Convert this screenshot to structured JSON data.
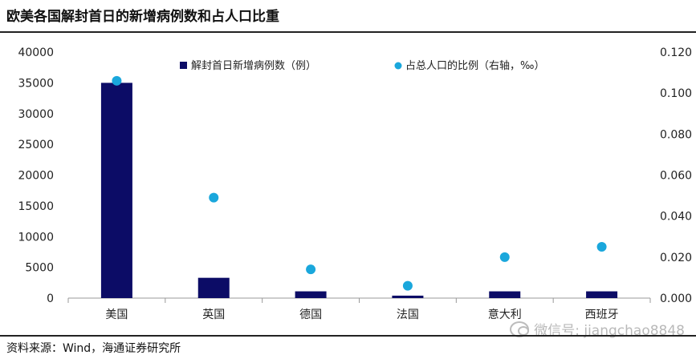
{
  "title": "欧美各国解封首日的新增病例数和占人口比重",
  "source": "资料来源：Wind，海通证券研究所",
  "watermark": "微信号: jiangchao8848",
  "colors": {
    "bar": "#0c0c66",
    "dot": "#1aa7dc",
    "axis": "#999999"
  },
  "chart_data": {
    "type": "bar",
    "categories": [
      "美国",
      "英国",
      "德国",
      "法国",
      "意大利",
      "西班牙"
    ],
    "series": [
      {
        "name": "解封首日新增病例数（例）",
        "type": "bar",
        "axis": "left",
        "values": [
          35000,
          3300,
          1100,
          400,
          1100,
          1100
        ]
      },
      {
        "name": "占总人口的比例（右轴，‰）",
        "type": "scatter",
        "axis": "right",
        "values": [
          0.106,
          0.049,
          0.014,
          0.006,
          0.02,
          0.025
        ]
      }
    ],
    "y_left": {
      "min": 0,
      "max": 40000,
      "ticks": [
        "0",
        "5000",
        "10000",
        "15000",
        "20000",
        "25000",
        "30000",
        "35000",
        "40000"
      ]
    },
    "y_right": {
      "min": 0,
      "max": 0.12,
      "ticks": [
        "0.000",
        "0.020",
        "0.040",
        "0.060",
        "0.080",
        "0.100",
        "0.120"
      ]
    },
    "grid": false,
    "legend_position": "top"
  }
}
